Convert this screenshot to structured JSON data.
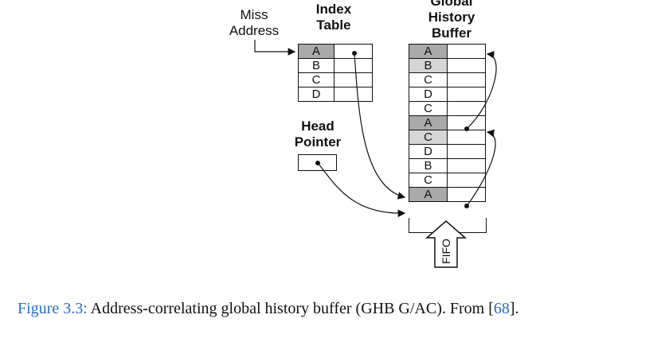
{
  "diagram": {
    "miss_address_label": "Miss\nAddress",
    "index_table_label": "Index\nTable",
    "ghb_label": "Global\nHistory\nBuffer",
    "head_pointer_label": "Head\nPointer",
    "fifo_label": "FIFO",
    "index_table_rows": [
      {
        "key": "A",
        "shaded": true
      },
      {
        "key": "B",
        "shaded": false
      },
      {
        "key": "C",
        "shaded": false
      },
      {
        "key": "D",
        "shaded": false
      }
    ],
    "ghb_rows": [
      {
        "key": "A",
        "shade": "dark"
      },
      {
        "key": "B",
        "shade": "light"
      },
      {
        "key": "C",
        "shade": "none"
      },
      {
        "key": "D",
        "shade": "none"
      },
      {
        "key": "C",
        "shade": "none"
      },
      {
        "key": "A",
        "shade": "dark"
      },
      {
        "key": "C",
        "shade": "light"
      },
      {
        "key": "D",
        "shade": "none"
      },
      {
        "key": "B",
        "shade": "none"
      },
      {
        "key": "C",
        "shade": "none"
      },
      {
        "key": "A",
        "shade": "dark"
      }
    ],
    "colors": {
      "dark_cell": "#a9a9a9",
      "light_cell": "#d6d6d6",
      "link": "#2a6cc2"
    }
  },
  "caption": {
    "figure_label": "Figure 3.3:",
    "text": " Address-correlating global history buffer (GHB G/AC). From [",
    "ref": "68",
    "end": "]."
  }
}
